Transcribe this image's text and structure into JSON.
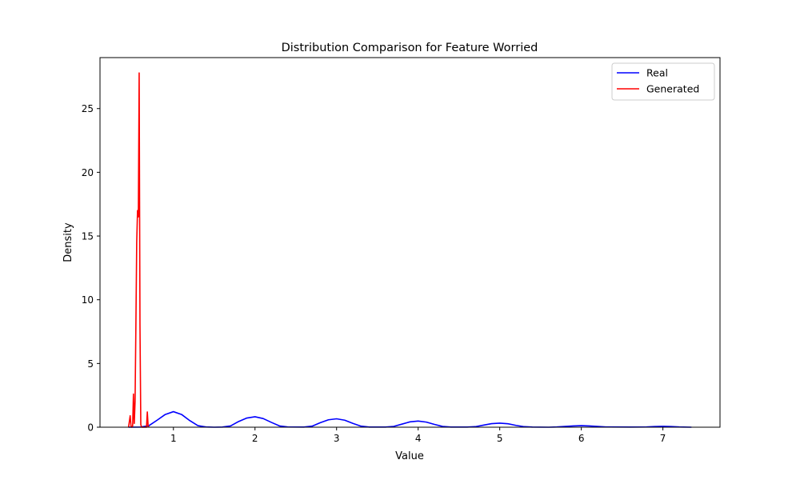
{
  "chart_data": {
    "type": "line",
    "title": "Distribution Comparison for Feature Worried",
    "xlabel": "Value",
    "ylabel": "Density",
    "xlim": [
      0.1,
      7.7
    ],
    "ylim": [
      0,
      29
    ],
    "xticks": [
      1,
      2,
      3,
      4,
      5,
      6,
      7
    ],
    "yticks": [
      0,
      5,
      10,
      15,
      20,
      25
    ],
    "grid": false,
    "legend": "top-right",
    "series": [
      {
        "name": "Real",
        "color": "#0000ff",
        "x": [
          0.45,
          0.6,
          0.7,
          0.8,
          0.9,
          1.0,
          1.1,
          1.2,
          1.3,
          1.4,
          1.5,
          1.6,
          1.7,
          1.8,
          1.9,
          2.0,
          2.1,
          2.2,
          2.3,
          2.4,
          2.6,
          2.7,
          2.8,
          2.9,
          3.0,
          3.1,
          3.2,
          3.3,
          3.4,
          3.6,
          3.7,
          3.8,
          3.9,
          4.0,
          4.1,
          4.2,
          4.3,
          4.4,
          4.6,
          4.7,
          4.8,
          4.9,
          5.0,
          5.1,
          5.2,
          5.3,
          5.4,
          5.6,
          5.7,
          5.8,
          5.9,
          6.0,
          6.1,
          6.2,
          6.3,
          6.6,
          6.8,
          6.9,
          7.0,
          7.1,
          7.2,
          7.35
        ],
        "values": [
          0.0,
          0.01,
          0.12,
          0.55,
          1.0,
          1.22,
          1.0,
          0.52,
          0.12,
          0.02,
          0.0,
          0.01,
          0.1,
          0.45,
          0.72,
          0.82,
          0.68,
          0.38,
          0.1,
          0.02,
          0.01,
          0.08,
          0.35,
          0.58,
          0.66,
          0.55,
          0.3,
          0.08,
          0.01,
          0.01,
          0.06,
          0.24,
          0.42,
          0.48,
          0.4,
          0.22,
          0.06,
          0.01,
          0.01,
          0.04,
          0.16,
          0.28,
          0.32,
          0.27,
          0.14,
          0.04,
          0.01,
          0.0,
          0.02,
          0.06,
          0.1,
          0.12,
          0.1,
          0.06,
          0.02,
          0.01,
          0.02,
          0.05,
          0.07,
          0.05,
          0.02,
          0.0
        ]
      },
      {
        "name": "Generated",
        "color": "#ff0000",
        "x": [
          0.45,
          0.47,
          0.48,
          0.49,
          0.5,
          0.51,
          0.52,
          0.53,
          0.54,
          0.55,
          0.56,
          0.57,
          0.58,
          0.59,
          0.6,
          0.61,
          0.62,
          0.63,
          0.64,
          0.66,
          0.67,
          0.68,
          0.69,
          0.7
        ],
        "values": [
          0.0,
          0.9,
          0.1,
          0.0,
          0.1,
          2.6,
          0.3,
          2.0,
          8.0,
          14.5,
          17.0,
          16.5,
          27.8,
          8.0,
          0.2,
          0.0,
          0.0,
          0.0,
          0.0,
          0.0,
          0.0,
          1.2,
          0.1,
          0.0
        ]
      }
    ]
  }
}
